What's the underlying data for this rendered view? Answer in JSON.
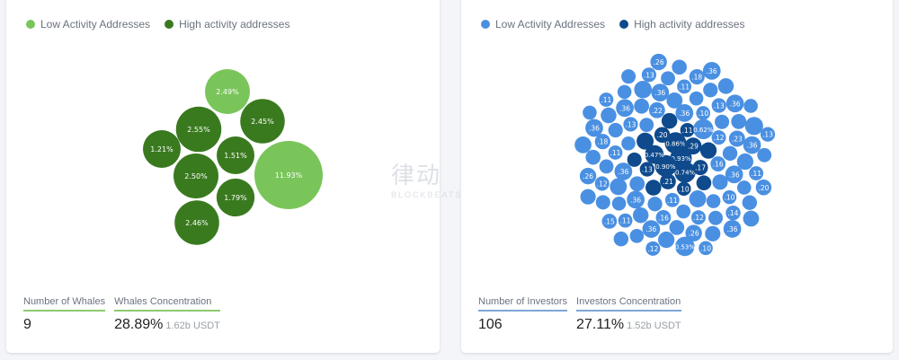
{
  "colors": {
    "low_green": "#7ac55a",
    "high_green": "#3a7a1f",
    "low_blue": "#4a90e2",
    "high_blue": "#0e4a8c"
  },
  "watermark": {
    "cn": "律动",
    "en": "BLOCKBEATS"
  },
  "chart_data": [
    {
      "type": "bubble",
      "legend": [
        "Low Activity Addresses",
        "High activity addresses"
      ],
      "legend_placement": "top-left",
      "bubbles": [
        {
          "label": "2.49%",
          "value": 2.49,
          "series": "low"
        },
        {
          "label": "2.55%",
          "value": 2.55,
          "series": "high"
        },
        {
          "label": "2.45%",
          "value": 2.45,
          "series": "high"
        },
        {
          "label": "1.21%",
          "value": 1.21,
          "series": "high"
        },
        {
          "label": "1.51%",
          "value": 1.51,
          "series": "high"
        },
        {
          "label": "11.93%",
          "value": 11.93,
          "series": "low"
        },
        {
          "label": "2.50%",
          "value": 2.5,
          "series": "high"
        },
        {
          "label": "1.79%",
          "value": 1.79,
          "series": "high"
        },
        {
          "label": "2.46%",
          "value": 2.46,
          "series": "high"
        }
      ],
      "stats": {
        "count_label": "Number of Whales",
        "count": "9",
        "conc_label": "Whales Concentration",
        "conc": "28.89%",
        "conc_sub": "1.62b USDT"
      }
    },
    {
      "type": "bubble",
      "legend": [
        "Low Activity Addresses",
        "High activity addresses"
      ],
      "legend_placement": "top-left",
      "high": {
        "values": [
          0.93,
          0.9,
          0.86,
          0.74,
          0.47,
          0.29,
          0.21,
          0.2,
          0.17,
          0.13,
          0.11,
          0.1,
          0.3,
          0.25,
          0.2,
          0.2,
          0.15,
          0.12
        ],
        "labels": [
          "0.93%",
          "0.90%",
          "0.86%",
          "0.74%",
          "0.47%",
          ".29",
          ".21",
          ".20",
          ".17",
          ".13",
          ".11",
          ".10",
          "",
          "",
          "",
          "",
          "",
          ""
        ]
      },
      "low": {
        "values": [
          0.62,
          0.53,
          0.36,
          0.36,
          0.36,
          0.36,
          0.36,
          0.36,
          0.36,
          0.36,
          0.36,
          0.36,
          0.36,
          0.36,
          0.26,
          0.26,
          0.26,
          0.23,
          0.22,
          0.2,
          0.18,
          0.18,
          0.16,
          0.16,
          0.15,
          0.14,
          0.13,
          0.13,
          0.13,
          0.13,
          0.12,
          0.12,
          0.12,
          0.12,
          0.11,
          0.11,
          0.11,
          0.11,
          0.11,
          0.11,
          0.1,
          0.1,
          0.1,
          0.4,
          0.35,
          0.3,
          0.3,
          0.28,
          0.25,
          0.25,
          0.22,
          0.22,
          0.2,
          0.2,
          0.2,
          0.18,
          0.18,
          0.18,
          0.16,
          0.16,
          0.16,
          0.15,
          0.15,
          0.15,
          0.14,
          0.14,
          0.14,
          0.13,
          0.13,
          0.13,
          0.12,
          0.12,
          0.12,
          0.12,
          0.11,
          0.11,
          0.11,
          0.11,
          0.1,
          0.1,
          0.1,
          0.1,
          0.1,
          0.1,
          0.1,
          0.1,
          0.1,
          0.1
        ],
        "labels": [
          "0.62%",
          "0.53%",
          ".36",
          ".36",
          ".36",
          ".36",
          ".36",
          ".36",
          ".36",
          ".36",
          ".36",
          ".36",
          ".36",
          ".36",
          ".26",
          ".26",
          ".26",
          ".23",
          ".22",
          ".20",
          ".18",
          ".18",
          ".16",
          ".16",
          ".15",
          ".14",
          ".13",
          ".13",
          ".13",
          ".13",
          ".12",
          ".12",
          ".12",
          ".12",
          ".11",
          ".11",
          ".11",
          ".11",
          ".11",
          ".11",
          ".10",
          ".10",
          ".10"
        ]
      },
      "stats": {
        "count_label": "Number of Investors",
        "count": "106",
        "conc_label": "Investors Concentration",
        "conc": "27.11%",
        "conc_sub": "1.52b USDT"
      }
    }
  ]
}
